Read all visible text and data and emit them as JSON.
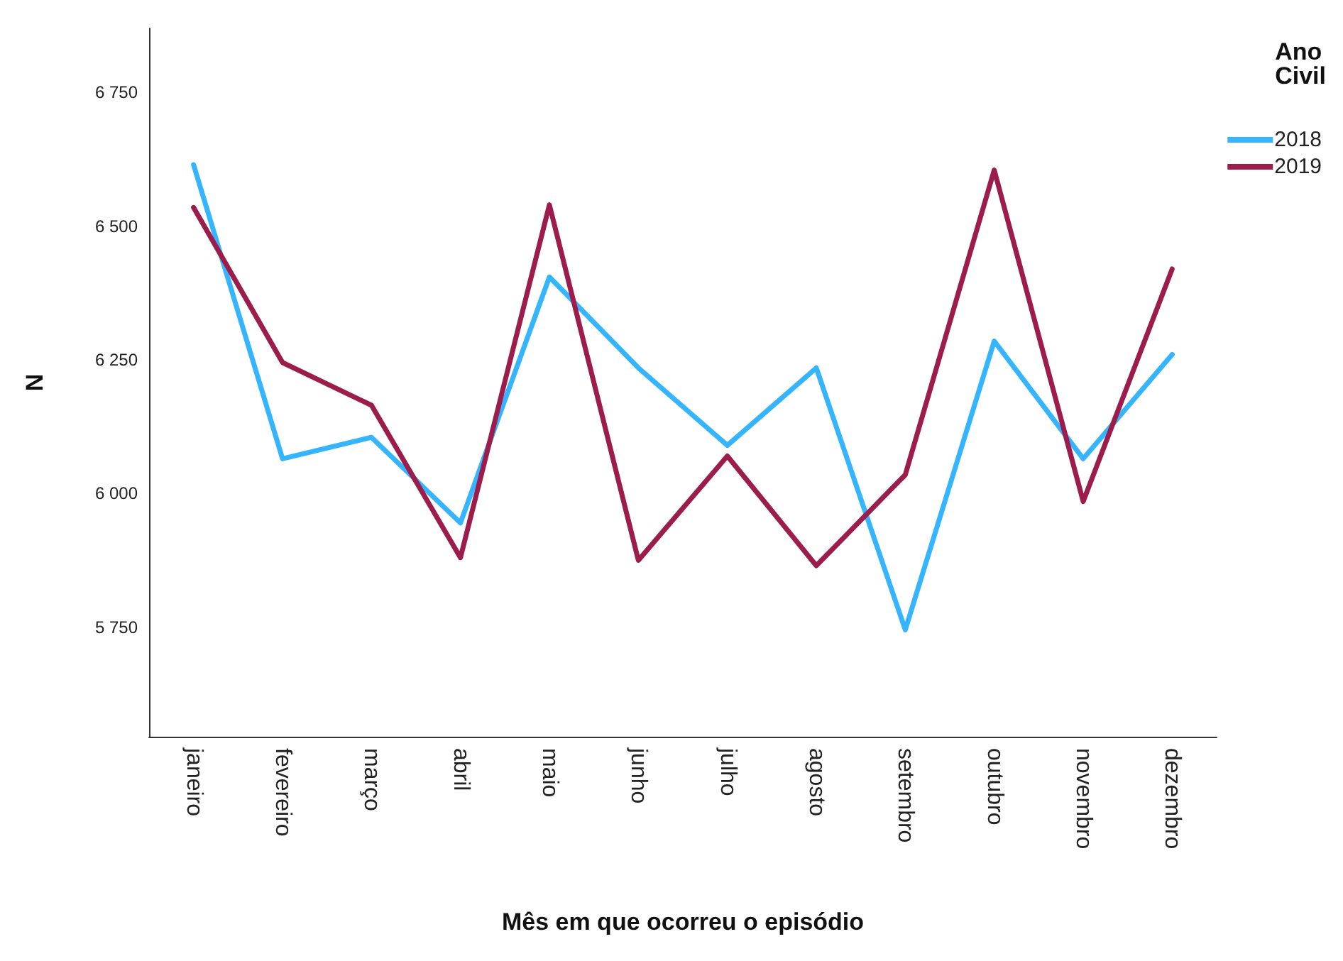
{
  "chart_data": {
    "type": "line",
    "xlabel": "Mês em que ocorreu o episódio",
    "ylabel": "N",
    "legend_title": "Ano\nCivil",
    "categories": [
      "janeiro",
      "fevereiro",
      "março",
      "abril",
      "maio",
      "junho",
      "julho",
      "agosto",
      "setembro",
      "outubro",
      "novembro",
      "dezembro"
    ],
    "series": [
      {
        "name": "2018",
        "color": "#35b5ff",
        "values": [
          6615,
          6065,
          6105,
          5945,
          6405,
          6235,
          6090,
          6235,
          5745,
          6285,
          6065,
          6260
        ]
      },
      {
        "name": "2019",
        "color": "#9c1c4c",
        "values": [
          6535,
          6245,
          6165,
          5880,
          6540,
          5875,
          6070,
          5865,
          6035,
          6605,
          5985,
          6420
        ]
      }
    ],
    "ylim": [
      5545,
      6870
    ],
    "yticks": [
      {
        "value": 5750,
        "label": "5 750"
      },
      {
        "value": 6000,
        "label": "6 000"
      },
      {
        "value": 6250,
        "label": "6 250"
      },
      {
        "value": 6500,
        "label": "6 500"
      },
      {
        "value": 6750,
        "label": "6 750"
      }
    ],
    "grid": false,
    "legend": "top right",
    "marker": "none",
    "line_style": "solid"
  }
}
